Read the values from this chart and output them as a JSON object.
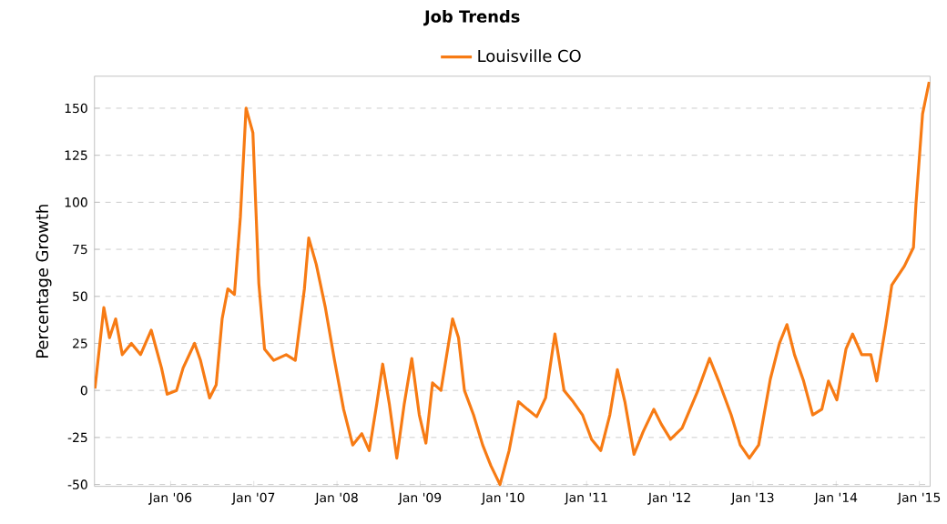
{
  "chart_data": {
    "type": "line",
    "title": "Job Trends",
    "ylabel": "Percentage Growth",
    "x": [
      "2005-02-03",
      "2005-03-14",
      "2005-04-08",
      "2005-05-05",
      "2005-06-03",
      "2005-07-13",
      "2005-08-22",
      "2005-10-08",
      "2005-11-22",
      "2005-12-17",
      "2006-01-27",
      "2006-02-25",
      "2006-04-16",
      "2006-05-12",
      "2006-06-21",
      "2006-07-20",
      "2006-08-15",
      "2006-09-09",
      "2006-10-08",
      "2006-11-03",
      "2006-11-28",
      "2006-12-28",
      "2007-01-23",
      "2007-02-17",
      "2007-03-29",
      "2007-05-23",
      "2007-07-02",
      "2007-08-11",
      "2007-08-30",
      "2007-10-02",
      "2007-11-11",
      "2007-12-21",
      "2008-01-30",
      "2008-03-10",
      "2008-04-19",
      "2008-05-22",
      "2008-06-24",
      "2008-07-20",
      "2008-08-18",
      "2008-09-20",
      "2008-10-23",
      "2008-11-25",
      "2008-12-28",
      "2009-01-26",
      "2009-02-24",
      "2009-04-02",
      "2009-05-23",
      "2009-06-18",
      "2009-07-14",
      "2009-08-23",
      "2009-10-02",
      "2009-11-07",
      "2009-12-17",
      "2010-01-26",
      "2010-03-08",
      "2010-04-16",
      "2010-05-27",
      "2010-07-05",
      "2010-08-15",
      "2010-09-24",
      "2010-11-03",
      "2010-12-14",
      "2011-01-23",
      "2011-03-04",
      "2011-04-13",
      "2011-05-16",
      "2011-06-18",
      "2011-07-28",
      "2011-09-06",
      "2011-10-23",
      "2011-11-25",
      "2012-01-04",
      "2012-02-24",
      "2012-05-04",
      "2012-06-24",
      "2012-08-03",
      "2012-09-27",
      "2012-11-06",
      "2012-12-16",
      "2013-01-26",
      "2013-03-18",
      "2013-04-27",
      "2013-05-30",
      "2013-07-02",
      "2013-08-11",
      "2013-09-20",
      "2013-10-30",
      "2013-11-28",
      "2014-01-04",
      "2014-02-13",
      "2014-03-14",
      "2014-04-23",
      "2014-06-02",
      "2014-06-28",
      "2014-08-07",
      "2014-09-02",
      "2014-10-27",
      "2014-12-06",
      "2014-12-17",
      "2015-01-15",
      "2015-02-13"
    ],
    "series": [
      {
        "name": "Louisville CO",
        "color": "#f77b14",
        "values": [
          1,
          44,
          28,
          38,
          19,
          25,
          19,
          32,
          12,
          -2,
          0,
          12,
          25,
          16,
          -4,
          3,
          38,
          54,
          51,
          92,
          150,
          137,
          57,
          22,
          16,
          19,
          16,
          54,
          81,
          67,
          44,
          16,
          -10,
          -29,
          -23,
          -32,
          -7,
          14,
          -7,
          -36,
          -7,
          17,
          -13,
          -28,
          4,
          0,
          38,
          28,
          0,
          -13,
          -29,
          -40,
          -50,
          -32,
          -6,
          -10,
          -14,
          -4,
          30,
          0,
          -6,
          -13,
          -26,
          -32,
          -13,
          11,
          -6,
          -34,
          -22,
          -10,
          -18,
          -26,
          -20,
          0,
          17,
          5,
          -13,
          -29,
          -36,
          -29,
          6,
          25,
          35,
          19,
          5,
          -13,
          -10,
          5,
          -5,
          22,
          30,
          19,
          19,
          5,
          35,
          56,
          66,
          76,
          99,
          147,
          164
        ]
      }
    ],
    "xlim": [
      "2005-02-01",
      "2015-02-17"
    ],
    "ylim": [
      -51,
      167
    ],
    "xticks": [
      {
        "value": "2006-01-01",
        "label": "Jan '06"
      },
      {
        "value": "2007-01-01",
        "label": "Jan '07"
      },
      {
        "value": "2008-01-01",
        "label": "Jan '08"
      },
      {
        "value": "2009-01-01",
        "label": "Jan '09"
      },
      {
        "value": "2010-01-01",
        "label": "Jan '10"
      },
      {
        "value": "2011-01-01",
        "label": "Jan '11"
      },
      {
        "value": "2012-01-01",
        "label": "Jan '12"
      },
      {
        "value": "2013-01-01",
        "label": "Jan '13"
      },
      {
        "value": "2014-01-01",
        "label": "Jan '14"
      },
      {
        "value": "2015-01-01",
        "label": "Jan '15"
      }
    ],
    "yticks": [
      -50,
      -25,
      0,
      25,
      50,
      75,
      100,
      125,
      150
    ],
    "grid": "y",
    "legend": "top"
  }
}
